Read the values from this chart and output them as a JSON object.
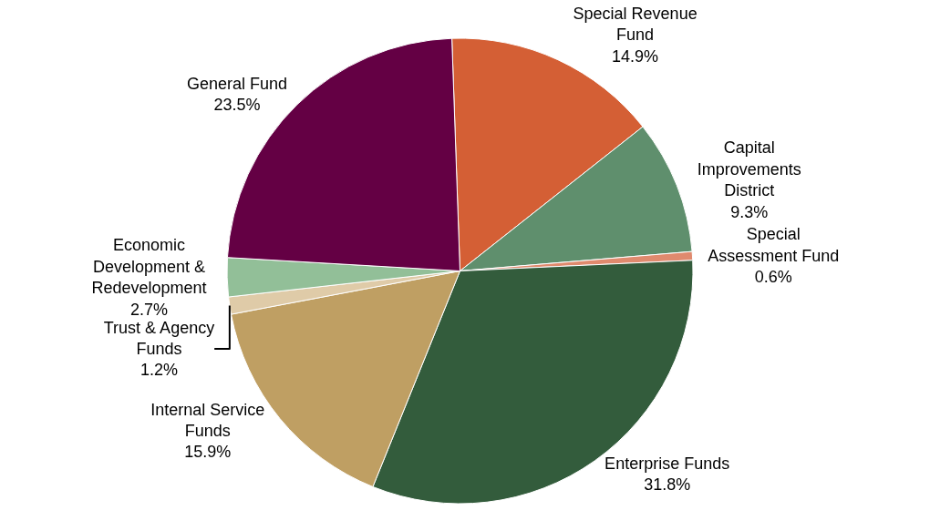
{
  "chart_data": {
    "type": "pie",
    "categories": [
      "Special Revenue Fund",
      "Capital Improvements District",
      "Special Assessment Fund",
      "Enterprise Funds",
      "Internal Service Funds",
      "Trust & Agency Funds",
      "Economic Development & Redevelopment",
      "General Fund"
    ],
    "values": [
      14.9,
      9.3,
      0.6,
      31.8,
      15.9,
      1.2,
      2.7,
      23.5
    ],
    "value_labels": [
      "14.9%",
      "9.3%",
      "0.6%",
      "31.8%",
      "15.9%",
      "1.2%",
      "2.7%",
      "23.5%"
    ],
    "colors": [
      "#d45f35",
      "#5f8f6d",
      "#e08a6e",
      "#335c3c",
      "#bf9f63",
      "#dfcba8",
      "#92bf98",
      "#640044"
    ],
    "legend": false
  }
}
